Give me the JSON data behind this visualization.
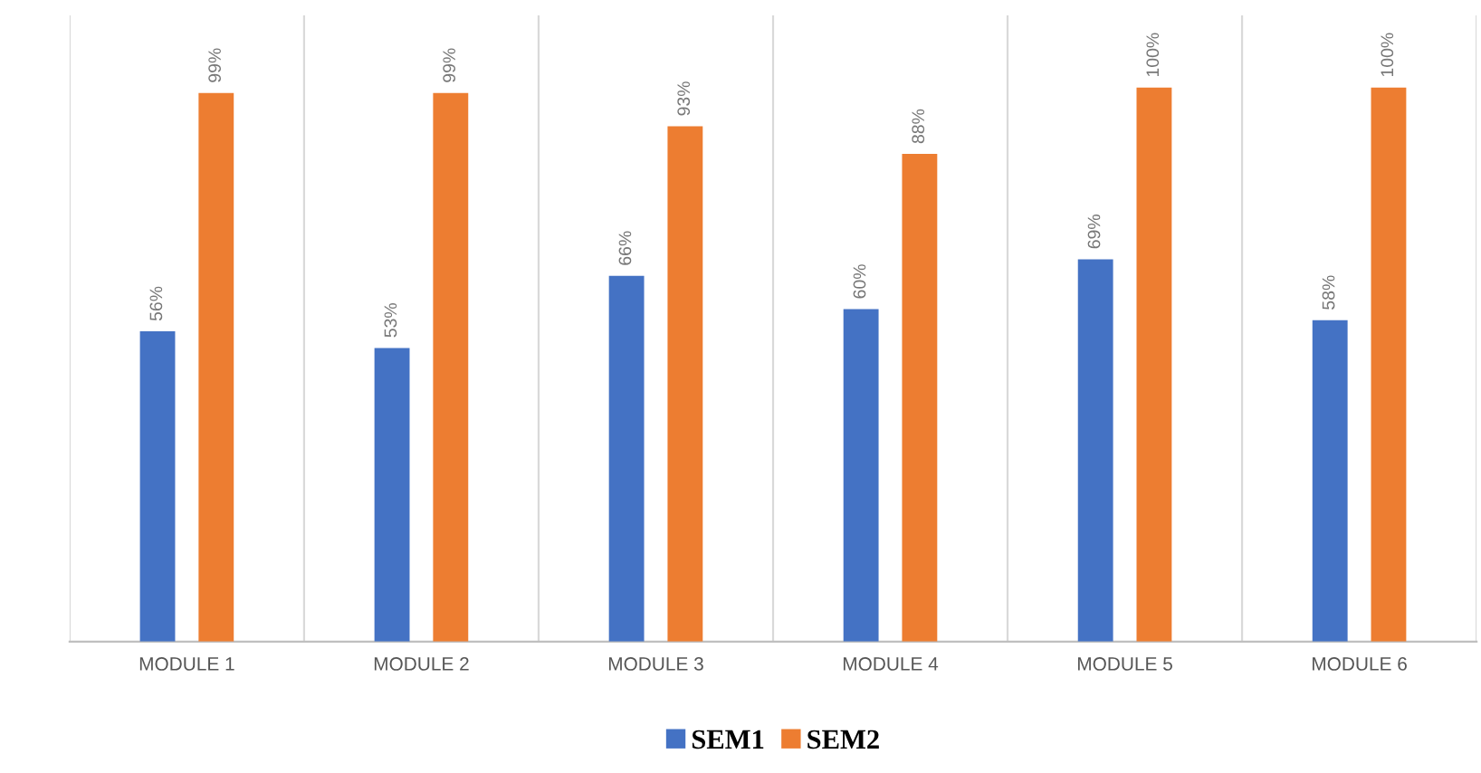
{
  "chart_data": {
    "type": "bar",
    "categories": [
      "MODULE 1",
      "MODULE 2",
      "MODULE 3",
      "MODULE 4",
      "MODULE 5",
      "MODULE 6"
    ],
    "series": [
      {
        "name": "SEM1",
        "color": "#4472c4",
        "values": [
          56,
          53,
          66,
          60,
          69,
          58
        ],
        "value_labels": [
          "56%",
          "53%",
          "66%",
          "60%",
          "69%",
          "58%"
        ]
      },
      {
        "name": "SEM2",
        "color": "#ed7d31",
        "values": [
          99,
          99,
          93,
          88,
          100,
          100
        ],
        "value_labels": [
          "99%",
          "99%",
          "93%",
          "88%",
          "100%",
          "100%"
        ]
      }
    ],
    "grid": "x",
    "legend": "bottom"
  }
}
